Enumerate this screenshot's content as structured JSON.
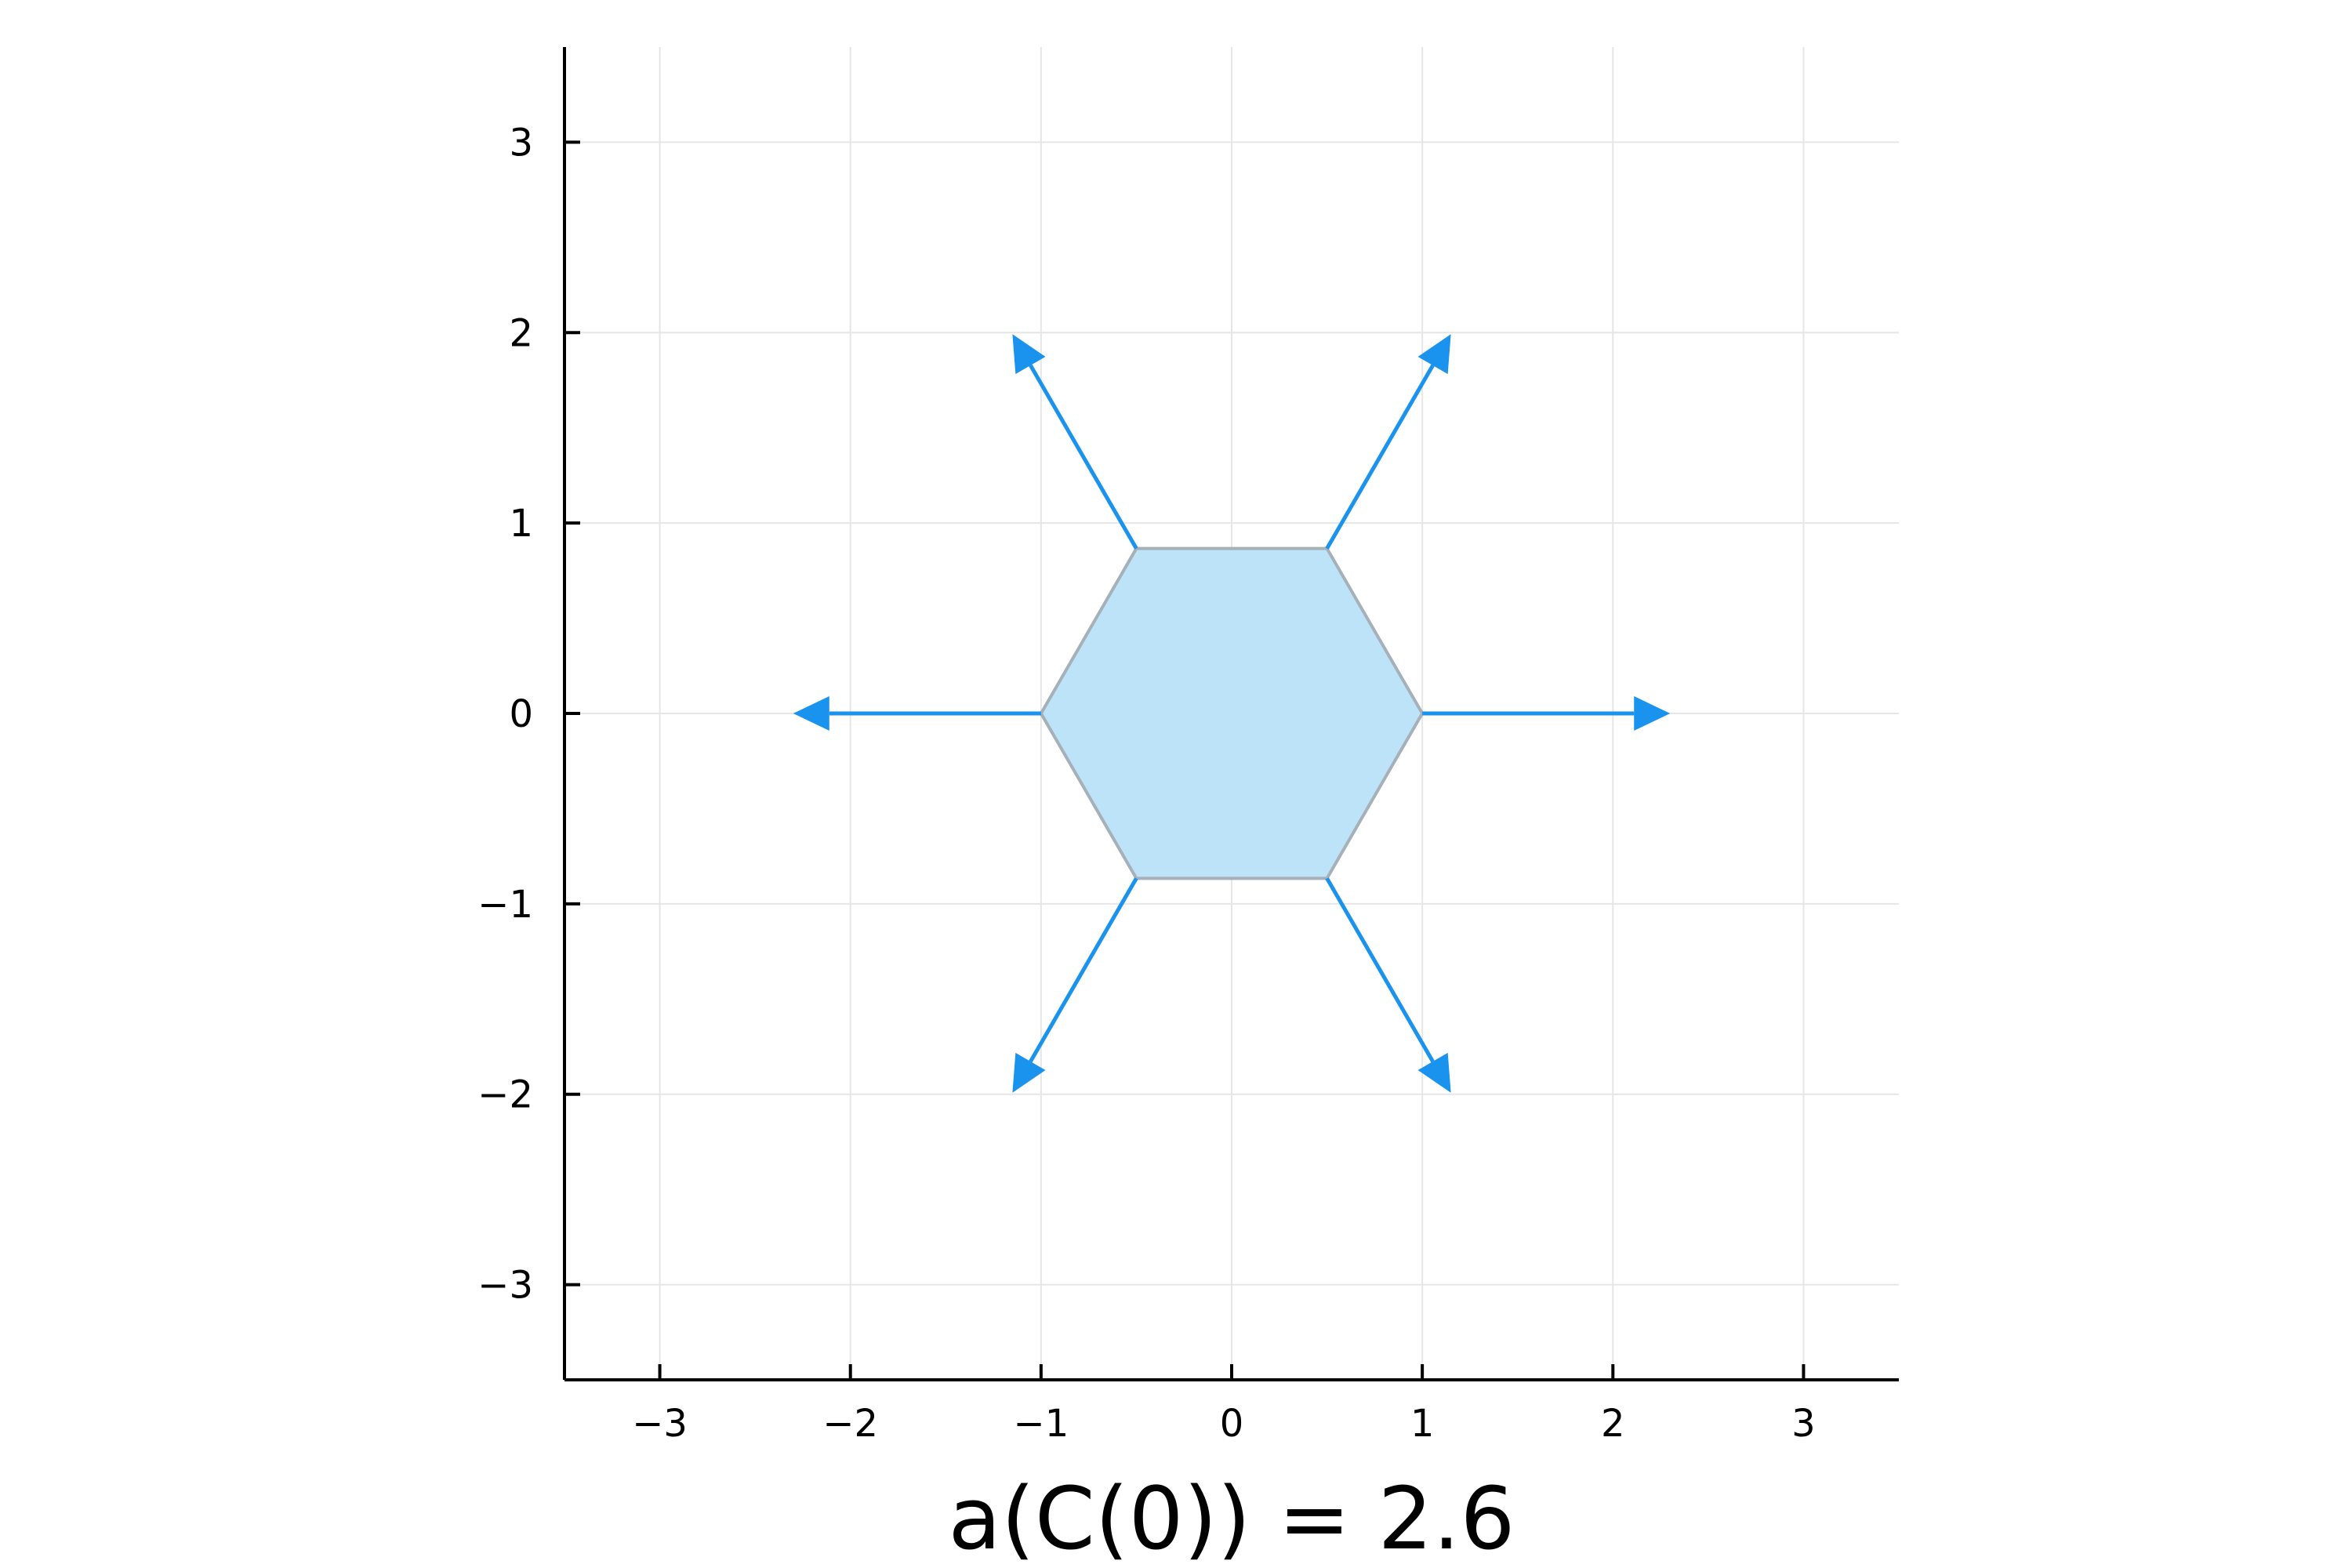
{
  "chart_data": {
    "type": "line",
    "title": "",
    "xlabel": "a(C(0)) = 2.6",
    "ylabel": "",
    "xlim": [
      -3.5,
      3.5
    ],
    "ylim": [
      -3.5,
      3.5
    ],
    "xticks": [
      -3,
      -2,
      -1,
      0,
      1,
      2,
      3
    ],
    "yticks": [
      -3,
      -2,
      -1,
      0,
      1,
      2,
      3
    ],
    "xtick_labels": [
      "−3",
      "−2",
      "−1",
      "0",
      "1",
      "2",
      "3"
    ],
    "ytick_labels": [
      "−3",
      "−2",
      "−1",
      "0",
      "1",
      "2",
      "3"
    ],
    "grid": true,
    "legend": "none",
    "series": [
      {
        "kind": "filled-polygon",
        "fill_color": "#bde3f9",
        "edge_color": "#a6b0b8",
        "points": [
          [
            1,
            0
          ],
          [
            0.5,
            0.866
          ],
          [
            -0.5,
            0.866
          ],
          [
            -1,
            0
          ],
          [
            -0.5,
            -0.866
          ],
          [
            0.5,
            -0.866
          ]
        ]
      },
      {
        "kind": "arrows",
        "color": "#1a93ee",
        "segments": [
          {
            "from": [
              1,
              0
            ],
            "to": [
              2.3,
              0
            ]
          },
          {
            "from": [
              0.5,
              0.866
            ],
            "to": [
              1.15,
              1.992
            ]
          },
          {
            "from": [
              -0.5,
              0.866
            ],
            "to": [
              -1.15,
              1.992
            ]
          },
          {
            "from": [
              -1,
              0
            ],
            "to": [
              -2.3,
              0
            ]
          },
          {
            "from": [
              -0.5,
              -0.866
            ],
            "to": [
              -1.15,
              -1.992
            ]
          },
          {
            "from": [
              0.5,
              -0.866
            ],
            "to": [
              1.15,
              -1.992
            ]
          }
        ]
      }
    ]
  }
}
